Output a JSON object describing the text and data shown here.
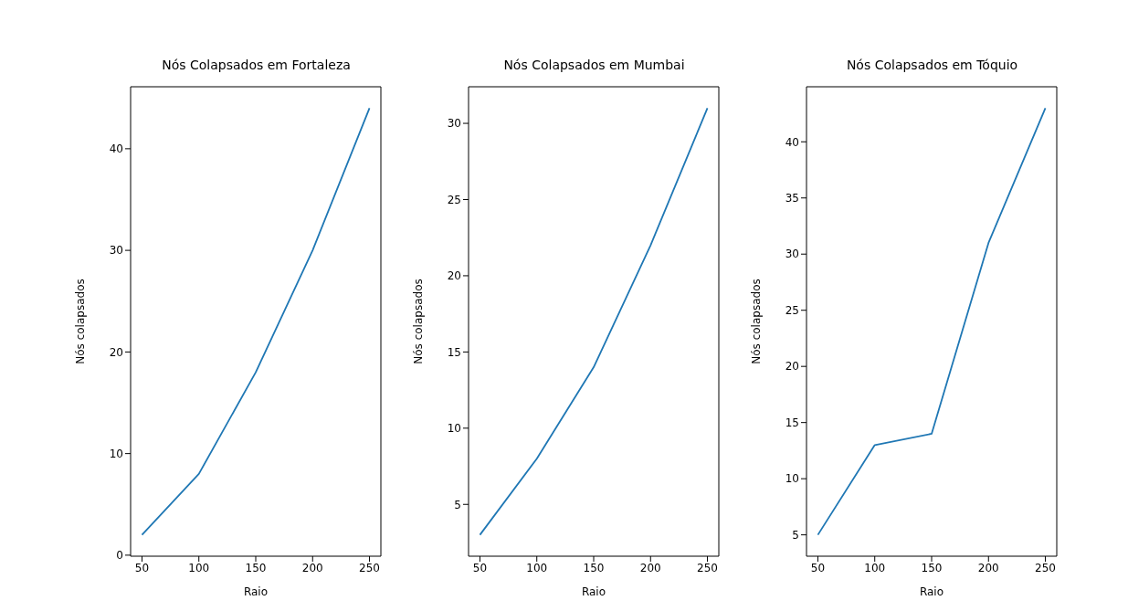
{
  "chart_data": [
    {
      "type": "line",
      "title": "Nós Colapsados em Fortaleza",
      "xlabel": "Raio",
      "ylabel": "Nós colapsados",
      "x": [
        50,
        100,
        150,
        200,
        250
      ],
      "values": [
        2,
        8,
        18,
        30,
        44
      ],
      "color": "#1f77b4",
      "xlim": [
        40,
        260
      ],
      "xticks": [
        50,
        100,
        150,
        200,
        250
      ],
      "ylim": [
        -0.1,
        46.1
      ],
      "yticks": [
        0,
        10,
        20,
        30,
        40
      ],
      "grid": false,
      "marker": "none"
    },
    {
      "type": "line",
      "title": "Nós Colapsados em Mumbai",
      "xlabel": "Raio",
      "ylabel": "Nós colapsados",
      "x": [
        50,
        100,
        150,
        200,
        250
      ],
      "values": [
        3,
        8,
        14,
        22,
        31
      ],
      "color": "#1f77b4",
      "xlim": [
        40,
        260
      ],
      "xticks": [
        50,
        100,
        150,
        200,
        250
      ],
      "ylim": [
        1.6,
        32.4
      ],
      "yticks": [
        5,
        10,
        15,
        20,
        25,
        30
      ],
      "grid": false,
      "marker": "none"
    },
    {
      "type": "line",
      "title": "Nós Colapsados em Tóquio",
      "xlabel": "Raio",
      "ylabel": "Nós colapsados",
      "x": [
        50,
        100,
        150,
        200,
        250
      ],
      "values": [
        5,
        13,
        14,
        31,
        43
      ],
      "color": "#1f77b4",
      "xlim": [
        40,
        260
      ],
      "xticks": [
        50,
        100,
        150,
        200,
        250
      ],
      "ylim": [
        3.1,
        44.9
      ],
      "yticks": [
        5,
        10,
        15,
        20,
        25,
        30,
        35,
        40
      ],
      "grid": false,
      "marker": "none"
    }
  ]
}
